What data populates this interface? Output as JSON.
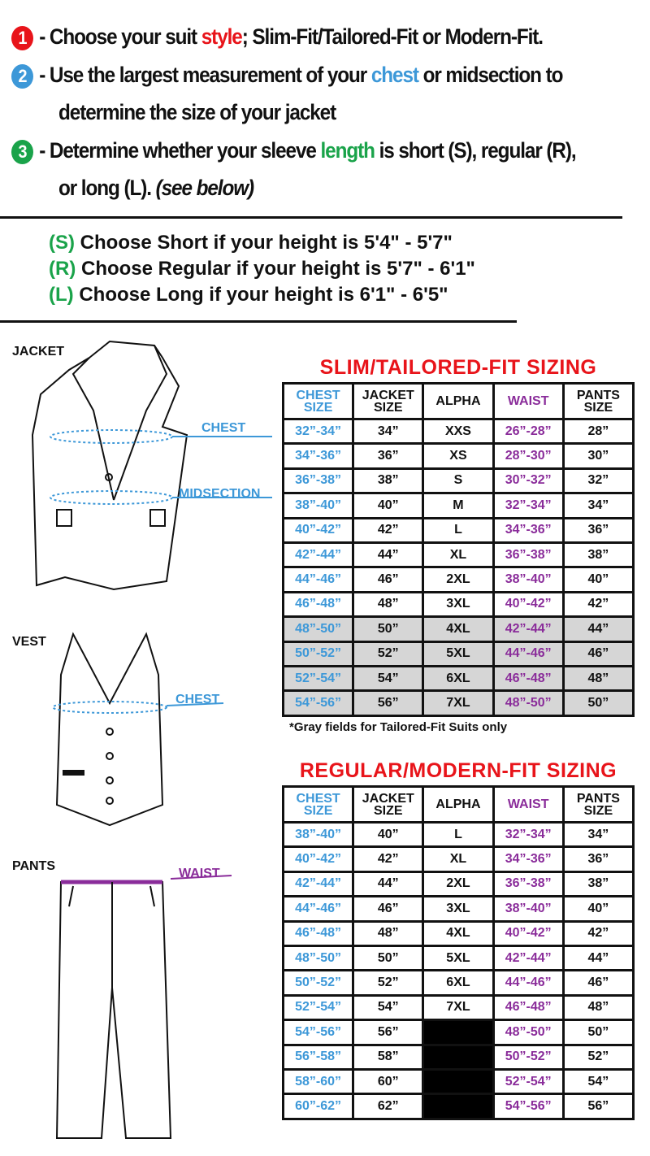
{
  "steps": [
    {
      "num": "1",
      "color": "#e8141a",
      "pre": "- Choose your suit ",
      "hl": "style",
      "hl_color": "#e8141a",
      "post": "; Slim-Fit/Tailored-Fit or Modern-Fit."
    },
    {
      "num": "2",
      "color": "#3d98d8",
      "pre": "- Use the largest measurement of your ",
      "hl": "chest",
      "hl_color": "#3d98d8",
      "post": " or midsection to",
      "cont": "determine the size of your jacket"
    },
    {
      "num": "3",
      "color": "#1aa34a",
      "pre": "- Determine whether your sleeve ",
      "hl": "length",
      "hl_color": "#1aa34a",
      "post": " is short (S), regular (R),",
      "cont": "or long (L).",
      "cont_italic": "(see below)"
    }
  ],
  "heights": [
    {
      "code": "(S)",
      "text": " Choose Short if your height is 5'4\" - 5'7\""
    },
    {
      "code": "(R)",
      "text": " Choose Regular if your height is  5'7\" - 6'1\""
    },
    {
      "code": "(L)",
      "text": " Choose Long if your height is  6'1\" - 6'5\""
    }
  ],
  "garments": {
    "jacket": "JACKET",
    "vest": "VEST",
    "pants": "PANTS",
    "chest": "CHEST",
    "midsection": "MIDSECTION",
    "vest_chest": "CHEST",
    "waist": "WAIST"
  },
  "headers": [
    "CHEST SIZE",
    "JACKET SIZE",
    "ALPHA",
    "WAIST",
    "PANTS SIZE"
  ],
  "slim": {
    "title": "SLIM/TAILORED-FIT SIZING",
    "note": "*Gray fields for Tailored-Fit Suits only",
    "gray_from_row": 8,
    "rows": [
      [
        "32”-34”",
        "34”",
        "XXS",
        "26”-28”",
        "28”"
      ],
      [
        "34”-36”",
        "36”",
        "XS",
        "28”-30”",
        "30”"
      ],
      [
        "36”-38”",
        "38”",
        "S",
        "30”-32”",
        "32”"
      ],
      [
        "38”-40”",
        "40”",
        "M",
        "32”-34”",
        "34”"
      ],
      [
        "40”-42”",
        "42”",
        "L",
        "34”-36”",
        "36”"
      ],
      [
        "42”-44”",
        "44”",
        "XL",
        "36”-38”",
        "38”"
      ],
      [
        "44”-46”",
        "46”",
        "2XL",
        "38”-40”",
        "40”"
      ],
      [
        "46”-48”",
        "48”",
        "3XL",
        "40”-42”",
        "42”"
      ],
      [
        "48”-50”",
        "50”",
        "4XL",
        "42”-44”",
        "44”"
      ],
      [
        "50”-52”",
        "52”",
        "5XL",
        "44”-46”",
        "46”"
      ],
      [
        "52”-54”",
        "54”",
        "6XL",
        "46”-48”",
        "48”"
      ],
      [
        "54”-56”",
        "56”",
        "7XL",
        "48”-50”",
        "50”"
      ]
    ]
  },
  "regular": {
    "title": "REGULAR/MODERN-FIT SIZING",
    "rows": [
      [
        "38”-40”",
        "40”",
        "L",
        "32”-34”",
        "34”"
      ],
      [
        "40”-42”",
        "42”",
        "XL",
        "34”-36”",
        "36”"
      ],
      [
        "42”-44”",
        "44”",
        "2XL",
        "36”-38”",
        "38”"
      ],
      [
        "44”-46”",
        "46”",
        "3XL",
        "38”-40”",
        "40”"
      ],
      [
        "46”-48”",
        "48”",
        "4XL",
        "40”-42”",
        "42”"
      ],
      [
        "48”-50”",
        "50”",
        "5XL",
        "42”-44”",
        "44”"
      ],
      [
        "50”-52”",
        "52”",
        "6XL",
        "44”-46”",
        "46”"
      ],
      [
        "52”-54”",
        "54”",
        "7XL",
        "46”-48”",
        "48”"
      ],
      [
        "54”-56”",
        "56”",
        "",
        "48”-50”",
        "50”"
      ],
      [
        "56”-58”",
        "58”",
        "",
        "50”-52”",
        "52”"
      ],
      [
        "58”-60”",
        "60”",
        "",
        "52”-54”",
        "54”"
      ],
      [
        "60”-62”",
        "62”",
        "",
        "54”-56”",
        "56”"
      ]
    ]
  }
}
